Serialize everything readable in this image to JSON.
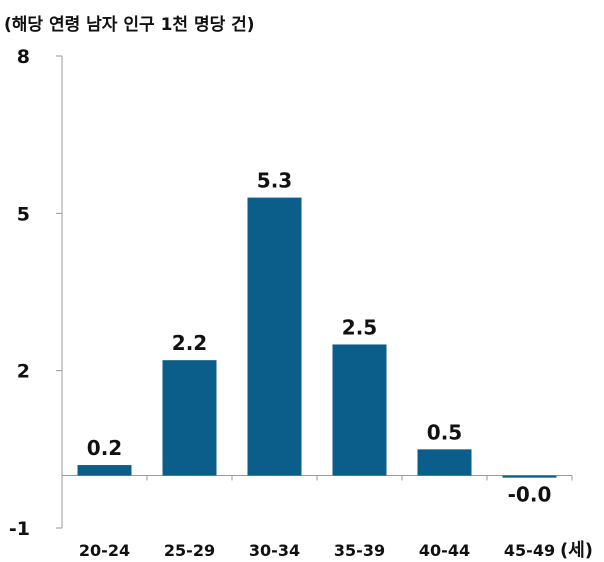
{
  "chart_data": {
    "type": "bar",
    "ylabel": "(해당 연령 남자 인구 1천 명당 건)",
    "x_unit": "(세)",
    "categories": [
      "20-24",
      "25-29",
      "30-34",
      "35-39",
      "40-44",
      "45-49"
    ],
    "values": [
      0.2,
      2.2,
      5.3,
      2.5,
      0.5,
      -0.04
    ],
    "data_labels": [
      "0.2",
      "2.2",
      "5.3",
      "2.5",
      "0.5",
      "-0.0"
    ],
    "yticks": [
      "8",
      "5",
      "2",
      "-1"
    ],
    "ylim": [
      -1,
      8
    ],
    "grid": false,
    "bar_color": "#0b5e8a"
  }
}
